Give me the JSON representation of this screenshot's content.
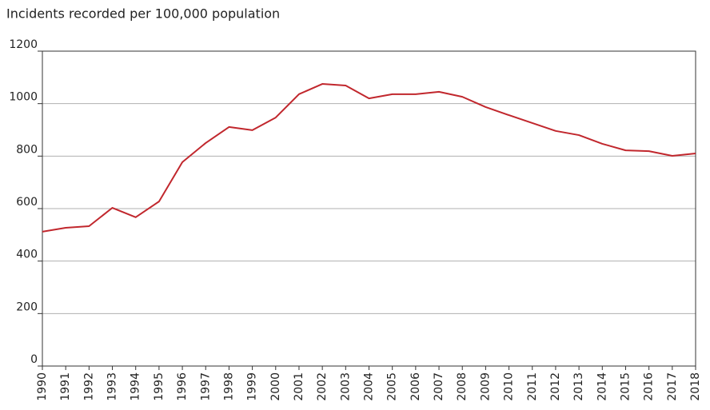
{
  "chart_data": {
    "type": "line",
    "title": "Incidents recorded per 100,000 population",
    "x": [
      1990,
      1991,
      1992,
      1993,
      1994,
      1995,
      1996,
      1997,
      1998,
      1999,
      2000,
      2001,
      2002,
      2003,
      2004,
      2005,
      2006,
      2007,
      2008,
      2009,
      2010,
      2011,
      2012,
      2013,
      2014,
      2015,
      2016,
      2017,
      2018
    ],
    "values": [
      512,
      527,
      533,
      603,
      567,
      627,
      777,
      850,
      911,
      899,
      947,
      1036,
      1075,
      1069,
      1020,
      1036,
      1036,
      1045,
      1026,
      987,
      956,
      926,
      896,
      880,
      847,
      822,
      819,
      801,
      810
    ],
    "color": "#c1272d",
    "xlim": [
      1990,
      2018
    ],
    "xticks": [
      1990,
      1991,
      1992,
      1993,
      1994,
      1995,
      1996,
      1997,
      1998,
      1999,
      2000,
      2001,
      2002,
      2003,
      2004,
      2005,
      2006,
      2007,
      2008,
      2009,
      2010,
      2011,
      2012,
      2013,
      2014,
      2015,
      2016,
      2017,
      2018
    ],
    "ylim": [
      0,
      1200
    ],
    "yticks": [
      0,
      200,
      400,
      600,
      800,
      1000,
      1200
    ],
    "grid": true
  }
}
